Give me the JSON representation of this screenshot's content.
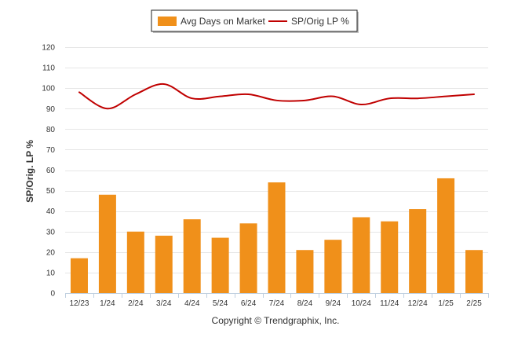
{
  "chart_data": {
    "type": "bar",
    "categories": [
      "12/23",
      "1/24",
      "2/24",
      "3/24",
      "4/24",
      "5/24",
      "6/24",
      "7/24",
      "8/24",
      "9/24",
      "10/24",
      "11/24",
      "12/24",
      "1/25",
      "2/25"
    ],
    "series": [
      {
        "name": "Avg Days on Market",
        "type": "bar",
        "color": "#f0901a",
        "values": [
          17,
          48,
          30,
          28,
          36,
          27,
          34,
          54,
          21,
          26,
          37,
          35,
          41,
          56,
          21
        ]
      },
      {
        "name": "SP/Orig LP %",
        "type": "line",
        "color": "#c00000",
        "values": [
          98,
          90,
          97,
          102,
          95,
          96,
          97,
          94,
          94,
          96,
          92,
          95,
          95,
          96,
          97
        ]
      }
    ],
    "title": "",
    "xlabel": "",
    "ylabel": "SP/Orig. LP %",
    "ylim": [
      0,
      120
    ],
    "yticks": [
      0,
      10,
      20,
      30,
      40,
      50,
      60,
      70,
      80,
      90,
      100,
      110,
      120
    ],
    "grid": true,
    "legend_position": "top-center",
    "footer": "Copyright © Trendgraphix, Inc."
  }
}
